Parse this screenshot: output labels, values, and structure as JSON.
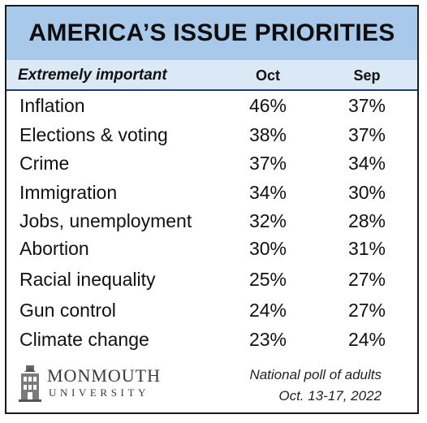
{
  "chart_data": {
    "type": "table",
    "title": "AMERICA’S ISSUE PRIORITIES",
    "row_header": "Extremely important",
    "columns": [
      "Oct",
      "Sep"
    ],
    "rows": [
      {
        "issue": "Inflation",
        "values": [
          "46%",
          "37%"
        ]
      },
      {
        "issue": "Elections & voting",
        "values": [
          "38%",
          "37%"
        ]
      },
      {
        "issue": "Crime",
        "values": [
          "37%",
          "34%"
        ]
      },
      {
        "issue": "Immigration",
        "values": [
          "34%",
          "30%"
        ]
      },
      {
        "issue": "Jobs, unemployment",
        "values": [
          "32%",
          "28%"
        ]
      },
      {
        "issue": "Abortion",
        "values": [
          "30%",
          "31%"
        ]
      },
      {
        "issue": "Racial inequality",
        "values": [
          "25%",
          "27%"
        ]
      },
      {
        "issue": "Gun control",
        "values": [
          "24%",
          "27%"
        ]
      },
      {
        "issue": "Climate change",
        "values": [
          "23%",
          "24%"
        ]
      }
    ]
  },
  "footer": {
    "logo_name": "MONMOUTH",
    "logo_sub": "UNIVERSITY",
    "note_line1": "National poll of adults",
    "note_line2": "Oct. 13-17, 2022"
  },
  "colors": {
    "title_bg": "#a9c9eb",
    "header_bg": "#dbe8f6",
    "header_rule": "#1e3c78"
  }
}
